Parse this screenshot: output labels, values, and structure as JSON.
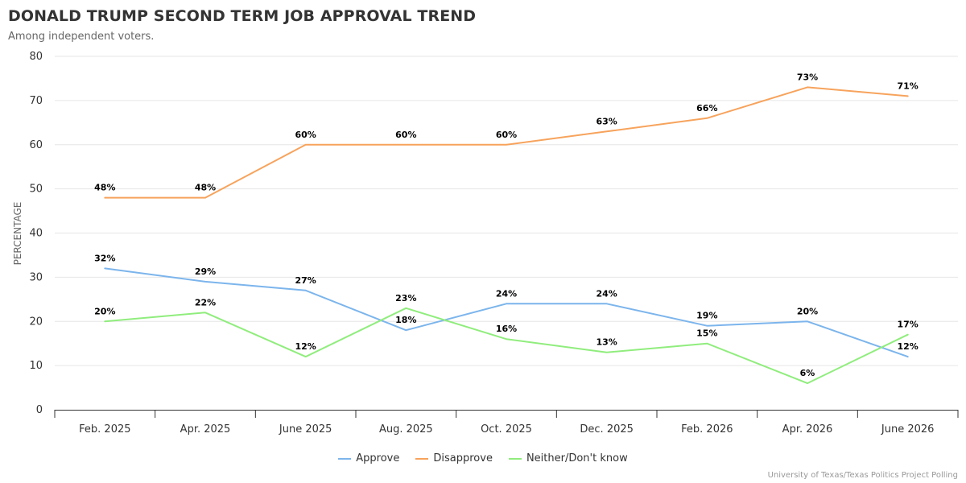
{
  "header": {
    "title": "DONALD TRUMP SECOND TERM JOB APPROVAL TREND",
    "subtitle": "Among independent voters."
  },
  "credit": "University of Texas/Texas Politics Project Polling",
  "chart_data": {
    "type": "line",
    "title": "DONALD TRUMP SECOND TERM JOB APPROVAL TREND",
    "subtitle": "Among independent voters.",
    "ylabel": "PERCENTAGE",
    "xlabel": "",
    "ylim": [
      0,
      80
    ],
    "yticks": [
      0,
      10,
      20,
      30,
      40,
      50,
      60,
      70,
      80
    ],
    "grid": true,
    "legend": "bottom-center",
    "categories": [
      "Feb. 2025",
      "Apr. 2025",
      "June 2025",
      "Aug. 2025",
      "Oct. 2025",
      "Dec. 2025",
      "Feb. 2026",
      "Apr. 2026",
      "June 2026"
    ],
    "series": [
      {
        "name": "Approve",
        "color": "#7cb5ec",
        "values": [
          32,
          29,
          27,
          18,
          24,
          24,
          19,
          20,
          12
        ],
        "labels": [
          "32%",
          "29%",
          "27%",
          "18%",
          "24%",
          "24%",
          "19%",
          "20%",
          "12%"
        ]
      },
      {
        "name": "Disapprove",
        "color": "#f7a35c",
        "values": [
          48,
          48,
          60,
          60,
          60,
          63,
          66,
          73,
          71
        ],
        "labels": [
          "48%",
          "48%",
          "60%",
          "60%",
          "60%",
          "63%",
          "66%",
          "73%",
          "71%"
        ]
      },
      {
        "name": "Neither/Don't know",
        "color": "#90ed7d",
        "values": [
          20,
          22,
          12,
          23,
          16,
          13,
          15,
          6,
          17
        ],
        "labels": [
          "20%",
          "22%",
          "12%",
          "23%",
          "16%",
          "13%",
          "15%",
          "6%",
          "17%"
        ]
      }
    ]
  }
}
